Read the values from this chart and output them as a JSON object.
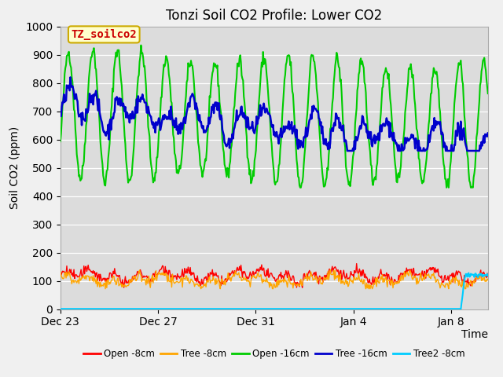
{
  "title": "Tonzi Soil CO2 Profile: Lower CO2",
  "ylabel": "Soil CO2 (ppm)",
  "xlabel": "Time",
  "annotation_text": "TZ_soilco2",
  "annotation_color": "#cc0000",
  "annotation_bg": "#ffffcc",
  "annotation_border": "#ccaa00",
  "fig_bg": "#f0f0f0",
  "plot_bg": "#dcdcdc",
  "ylim": [
    0,
    1000
  ],
  "yticks": [
    0,
    100,
    200,
    300,
    400,
    500,
    600,
    700,
    800,
    900,
    1000
  ],
  "xtick_labels": [
    "Dec 23",
    "Dec 27",
    "Dec 31",
    "Jan 4",
    "Jan 8"
  ],
  "legend_labels": [
    "Open -8cm",
    "Tree -8cm",
    "Open -16cm",
    "Tree -16cm",
    "Tree2 -8cm"
  ],
  "legend_colors": [
    "#ff0000",
    "#ffa500",
    "#00cc00",
    "#0000cc",
    "#00ccff"
  ],
  "line_widths": [
    1.0,
    1.0,
    1.5,
    1.8,
    1.5
  ],
  "n_points": 600,
  "seed": 42
}
